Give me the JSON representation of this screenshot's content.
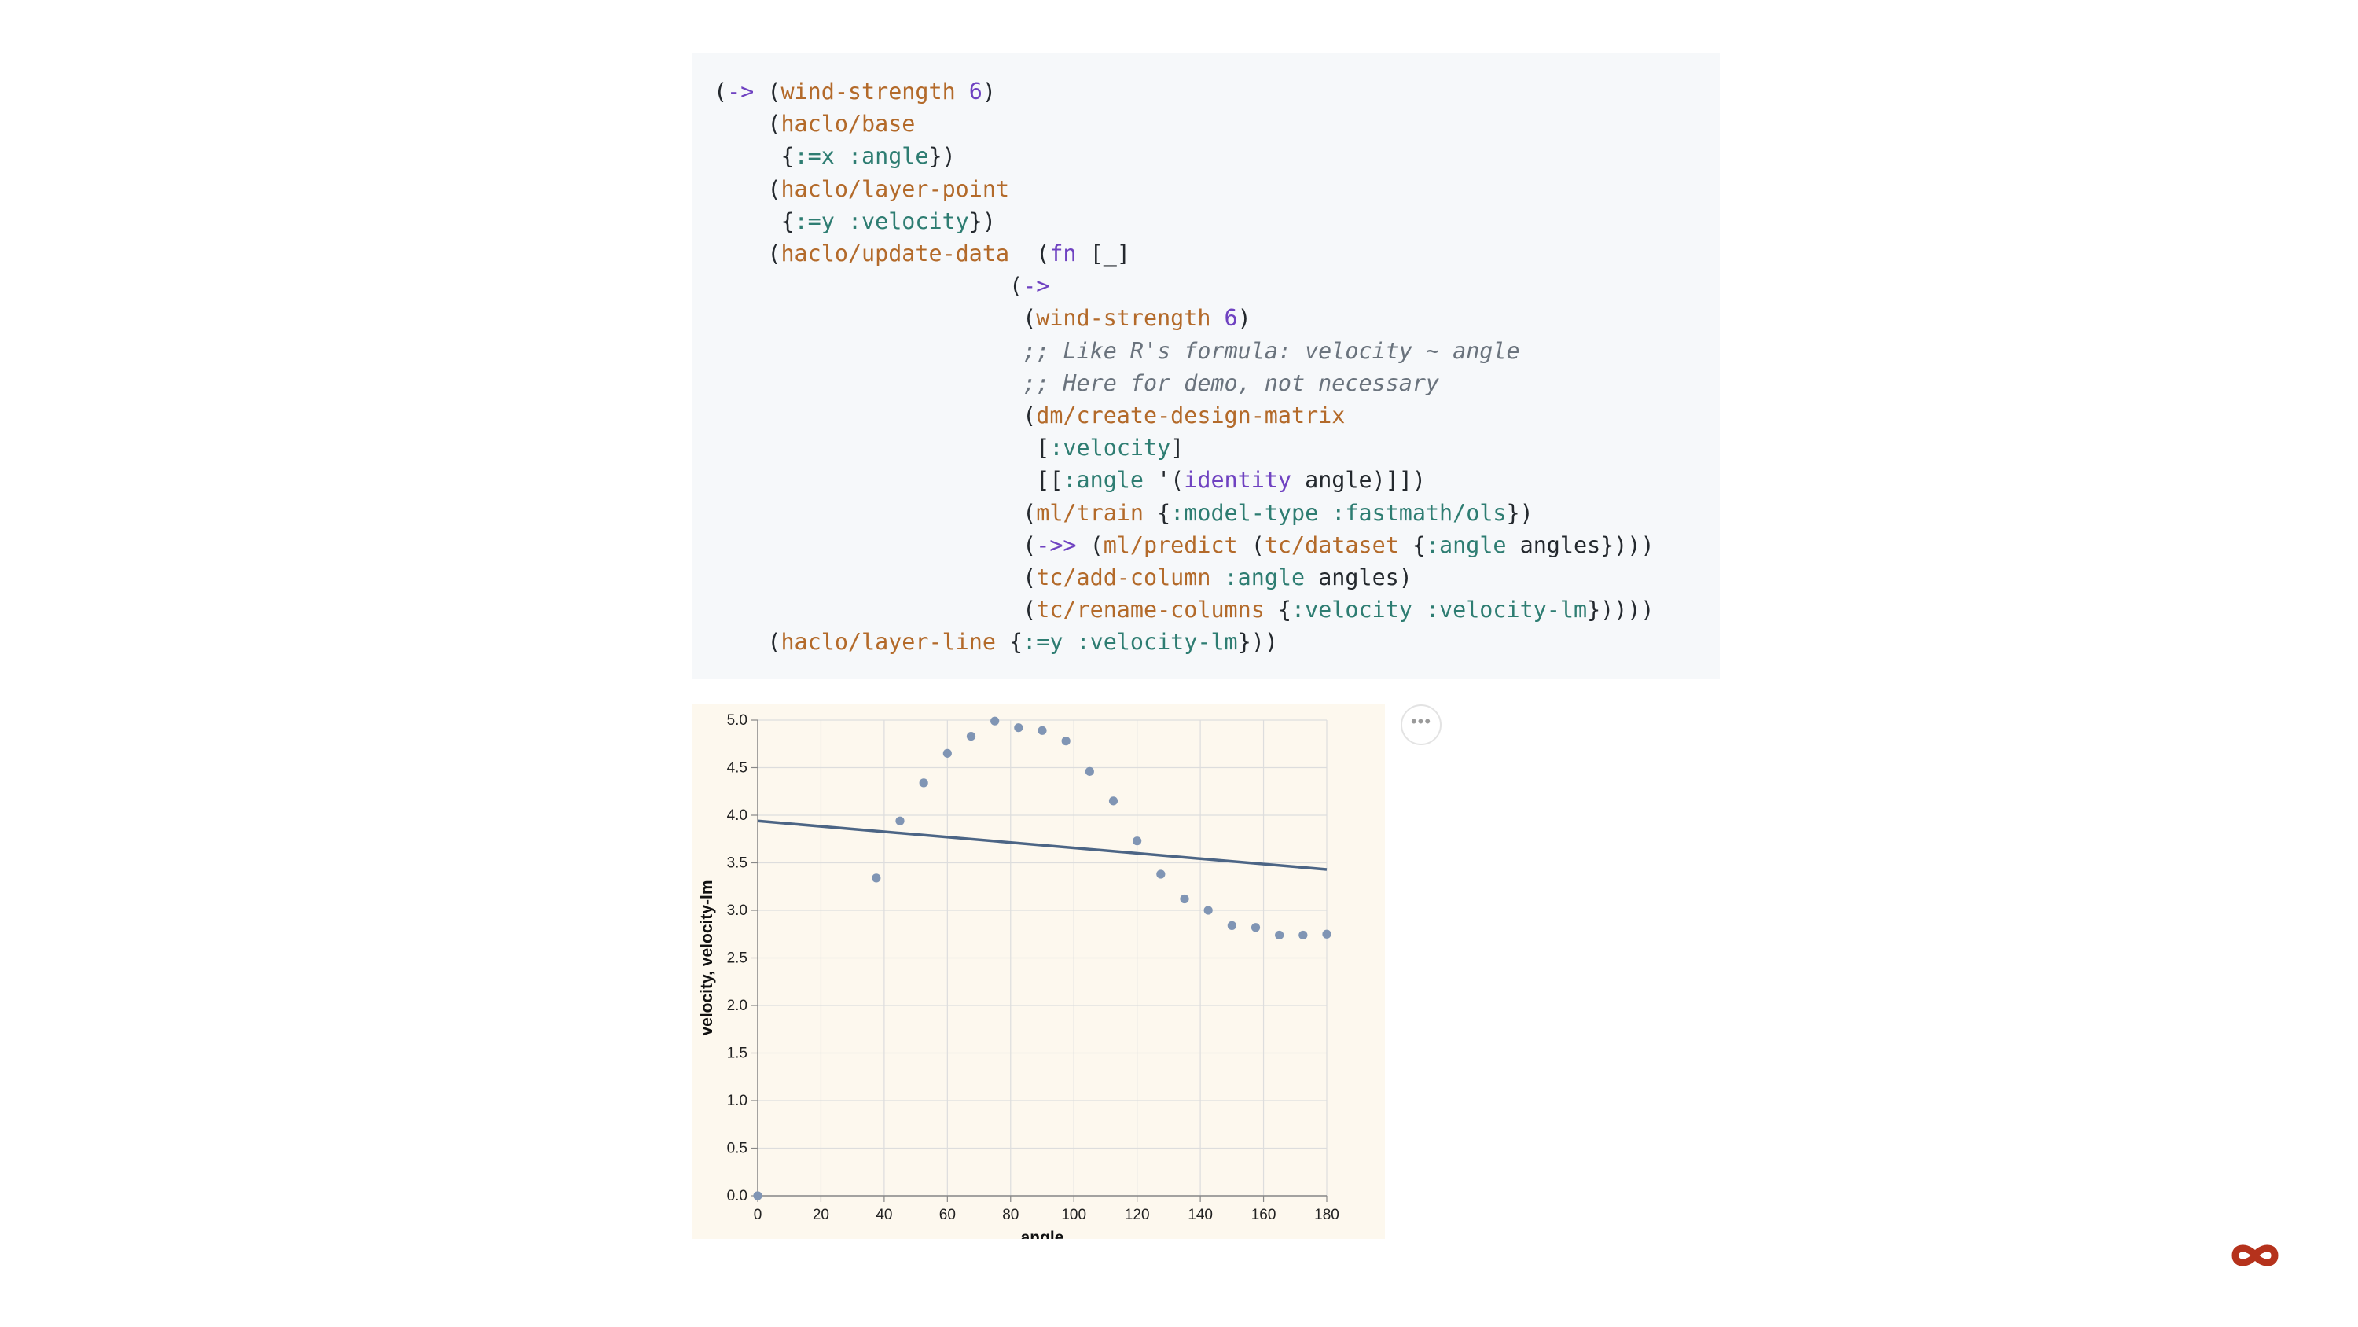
{
  "code": {
    "lines": [
      [
        {
          "t": "("
        },
        {
          "t": "->",
          "c": "mac"
        },
        {
          "t": " ("
        },
        {
          "t": "wind-strength",
          "c": "fn"
        },
        {
          "t": " "
        },
        {
          "t": "6",
          "c": "num"
        },
        {
          "t": ")"
        }
      ],
      [
        {
          "t": "    ("
        },
        {
          "t": "haclo/base",
          "c": "fn"
        }
      ],
      [
        {
          "t": "     {"
        },
        {
          "t": ":=x",
          "c": "kw"
        },
        {
          "t": " "
        },
        {
          "t": ":angle",
          "c": "kw"
        },
        {
          "t": "})"
        }
      ],
      [
        {
          "t": "    ("
        },
        {
          "t": "haclo/layer-point",
          "c": "fn"
        }
      ],
      [
        {
          "t": "     {"
        },
        {
          "t": ":=y",
          "c": "kw"
        },
        {
          "t": " "
        },
        {
          "t": ":velocity",
          "c": "kw"
        },
        {
          "t": "})"
        }
      ],
      [
        {
          "t": "    ("
        },
        {
          "t": "haclo/update-data",
          "c": "fn"
        },
        {
          "t": "  ("
        },
        {
          "t": "fn",
          "c": "mac"
        },
        {
          "t": " [_]"
        }
      ],
      [
        {
          "t": "                      ("
        },
        {
          "t": "->",
          "c": "mac"
        }
      ],
      [
        {
          "t": "                       ("
        },
        {
          "t": "wind-strength",
          "c": "fn"
        },
        {
          "t": " "
        },
        {
          "t": "6",
          "c": "num"
        },
        {
          "t": ")"
        }
      ],
      [
        {
          "t": "                       "
        },
        {
          "t": ";; Like R's formula: velocity ~ angle",
          "c": "cm"
        }
      ],
      [
        {
          "t": "                       "
        },
        {
          "t": ";; Here for demo, not necessary",
          "c": "cm"
        }
      ],
      [
        {
          "t": "                       ("
        },
        {
          "t": "dm/create-design-matrix",
          "c": "fn"
        }
      ],
      [
        {
          "t": "                        ["
        },
        {
          "t": ":velocity",
          "c": "kw"
        },
        {
          "t": "]"
        }
      ],
      [
        {
          "t": "                        [["
        },
        {
          "t": ":angle",
          "c": "kw"
        },
        {
          "t": " '("
        },
        {
          "t": "identity",
          "c": "mac"
        },
        {
          "t": " angle)]])"
        }
      ],
      [
        {
          "t": "                       ("
        },
        {
          "t": "ml/train",
          "c": "fn"
        },
        {
          "t": " {"
        },
        {
          "t": ":model-type",
          "c": "kw"
        },
        {
          "t": " "
        },
        {
          "t": ":fastmath/ols",
          "c": "kw"
        },
        {
          "t": "})"
        }
      ],
      [
        {
          "t": "                       ("
        },
        {
          "t": "->>",
          "c": "mac"
        },
        {
          "t": " ("
        },
        {
          "t": "ml/predict",
          "c": "fn"
        },
        {
          "t": " ("
        },
        {
          "t": "tc/dataset",
          "c": "fn"
        },
        {
          "t": " {"
        },
        {
          "t": ":angle",
          "c": "kw"
        },
        {
          "t": " angles})))"
        }
      ],
      [
        {
          "t": "                       ("
        },
        {
          "t": "tc/add-column",
          "c": "fn"
        },
        {
          "t": " "
        },
        {
          "t": ":angle",
          "c": "kw"
        },
        {
          "t": " angles)"
        }
      ],
      [
        {
          "t": "                       ("
        },
        {
          "t": "tc/rename-columns",
          "c": "fn"
        },
        {
          "t": " {"
        },
        {
          "t": ":velocity",
          "c": "kw"
        },
        {
          "t": " "
        },
        {
          "t": ":velocity-lm",
          "c": "kw"
        },
        {
          "t": "}))))"
        }
      ],
      [
        {
          "t": "    ("
        },
        {
          "t": "haclo/layer-line",
          "c": "fn"
        },
        {
          "t": " {"
        },
        {
          "t": ":=y",
          "c": "kw"
        },
        {
          "t": " "
        },
        {
          "t": ":velocity-lm",
          "c": "kw"
        },
        {
          "t": "}))"
        }
      ]
    ]
  },
  "chart_data": {
    "type": "scatter",
    "xlabel": "angle",
    "ylabel": "velocity, velocity-lm",
    "xlim": [
      0,
      180
    ],
    "ylim": [
      0,
      5
    ],
    "x_ticks": [
      0,
      20,
      40,
      60,
      80,
      100,
      120,
      140,
      160,
      180
    ],
    "y_ticks": [
      "0.0",
      "0.5",
      "1.0",
      "1.5",
      "2.0",
      "2.5",
      "3.0",
      "3.5",
      "4.0",
      "4.5",
      "5.0"
    ],
    "grid": true,
    "series": [
      {
        "type": "scatter",
        "points": [
          [
            0,
            0.0
          ],
          [
            37.5,
            3.34
          ],
          [
            45,
            3.94
          ],
          [
            52.5,
            4.34
          ],
          [
            60,
            4.65
          ],
          [
            67.5,
            4.83
          ],
          [
            75,
            4.99
          ],
          [
            82.5,
            4.92
          ],
          [
            90,
            4.89
          ],
          [
            97.5,
            4.78
          ],
          [
            105,
            4.46
          ],
          [
            112.5,
            4.15
          ],
          [
            120,
            3.73
          ],
          [
            127.5,
            3.38
          ],
          [
            135,
            3.12
          ],
          [
            142.5,
            3.0
          ],
          [
            150,
            2.84
          ],
          [
            157.5,
            2.82
          ],
          [
            165,
            2.74
          ],
          [
            172.5,
            2.74
          ],
          [
            180,
            2.75
          ]
        ]
      },
      {
        "type": "line",
        "points": [
          [
            0,
            3.94
          ],
          [
            180,
            3.43
          ]
        ]
      }
    ],
    "colors": {
      "points": "#8095b4",
      "line": "#4c6585",
      "plot_background": "#fdf8ee",
      "grid": "#dddddd"
    }
  },
  "actions_button": {
    "label": "•••",
    "icon": "more-horizontal-icon"
  },
  "logo": {
    "icon": "infinity-icon",
    "color": "#b5321c"
  }
}
